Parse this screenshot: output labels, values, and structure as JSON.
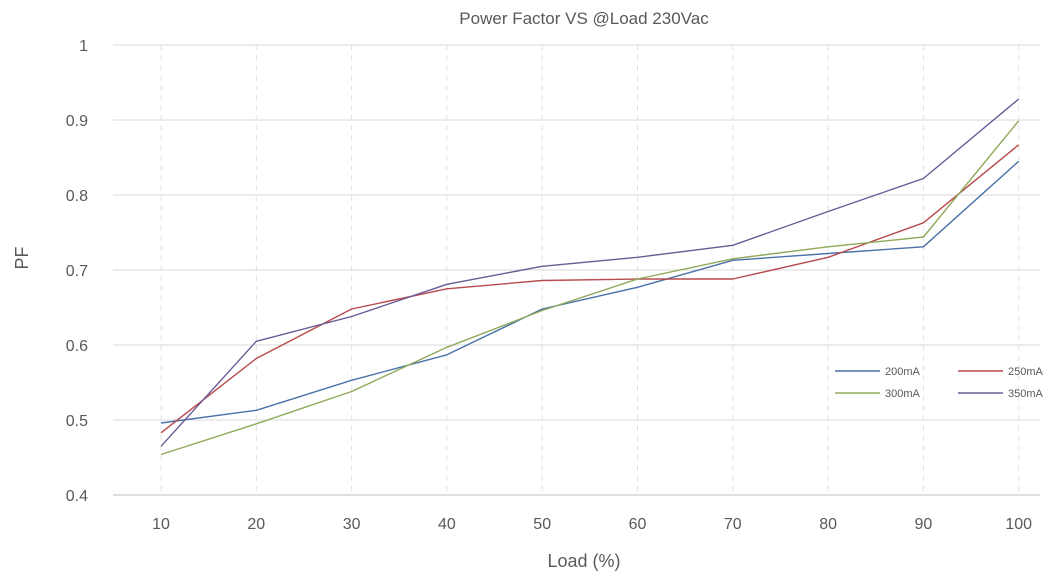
{
  "chart_data": {
    "type": "line",
    "title": "Power Factor VS @Load 230Vac",
    "xlabel": "Load (%)",
    "ylabel": "PF",
    "x": [
      10,
      20,
      30,
      40,
      50,
      60,
      70,
      80,
      90,
      100
    ],
    "x_tick_labels": [
      "10",
      "20",
      "30",
      "40",
      "50",
      "60",
      "70",
      "80",
      "90",
      "100"
    ],
    "ylim": [
      0.4,
      1
    ],
    "y_ticks": [
      0.4,
      0.5,
      0.6,
      0.7,
      0.8,
      0.9,
      1
    ],
    "y_tick_labels": [
      "0.4",
      "0.5",
      "0.6",
      "0.7",
      "0.8",
      "0.9",
      "1"
    ],
    "grid": {
      "horizontal": true,
      "vertical_dashed": true
    },
    "legend": {
      "placement": "right"
    },
    "series": [
      {
        "name": "200mA",
        "color": "#4a71a8",
        "values": [
          0.496,
          0.513,
          0.553,
          0.587,
          0.648,
          0.677,
          0.713,
          0.722,
          0.731,
          0.845
        ]
      },
      {
        "name": "250mA",
        "color": "#b84a4d",
        "values": [
          0.483,
          0.582,
          0.648,
          0.675,
          0.686,
          0.688,
          0.688,
          0.717,
          0.763,
          0.867
        ]
      },
      {
        "name": "300mA",
        "color": "#8fa95a",
        "values": [
          0.454,
          0.495,
          0.538,
          0.597,
          0.646,
          0.688,
          0.715,
          0.731,
          0.744,
          0.899
        ]
      },
      {
        "name": "350mA",
        "color": "#6b5b95",
        "values": [
          0.465,
          0.605,
          0.638,
          0.681,
          0.705,
          0.717,
          0.733,
          0.778,
          0.822,
          0.928
        ]
      }
    ]
  }
}
